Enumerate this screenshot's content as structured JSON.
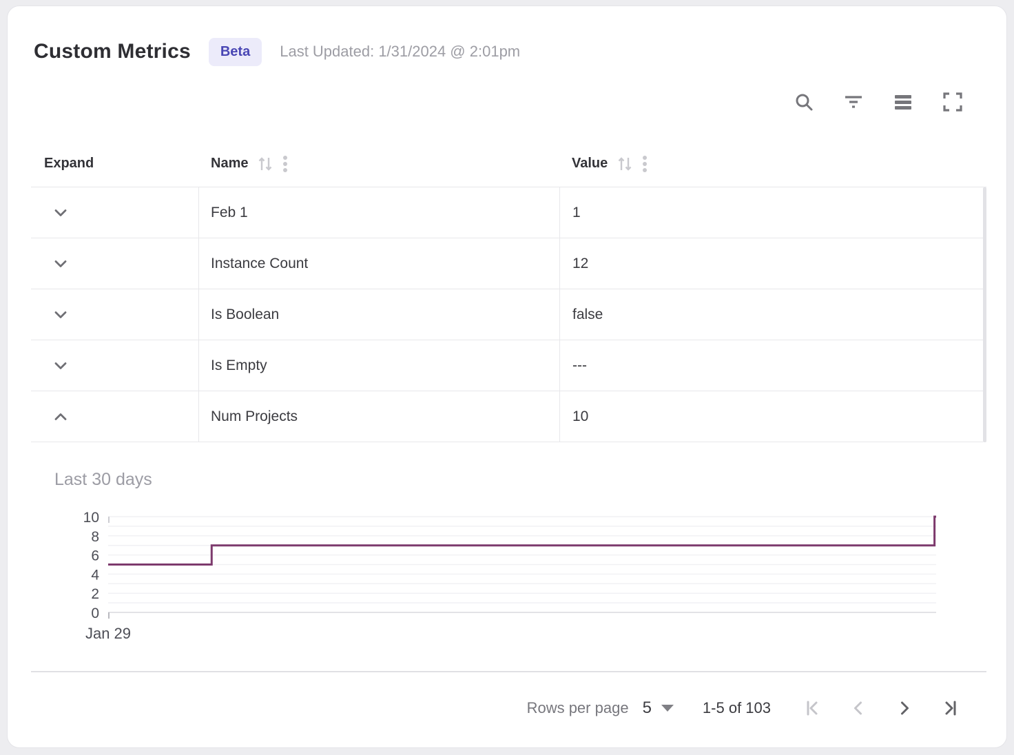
{
  "page": {
    "title": "Custom Metrics",
    "badge": "Beta",
    "last_updated": "Last Updated: 1/31/2024 @ 2:01pm"
  },
  "toolbar": {
    "icons": [
      "search-icon",
      "filter-icon",
      "density-icon",
      "fullscreen-icon"
    ]
  },
  "table": {
    "columns": [
      {
        "label": "Expand",
        "sortable": false
      },
      {
        "label": "Name",
        "sortable": true
      },
      {
        "label": "Value",
        "sortable": true
      }
    ],
    "rows": [
      {
        "name": "Feb 1",
        "value": "1",
        "expanded": false
      },
      {
        "name": "Instance Count",
        "value": "12",
        "expanded": false
      },
      {
        "name": "Is Boolean",
        "value": "false",
        "expanded": false
      },
      {
        "name": "Is Empty",
        "value": "---",
        "expanded": false
      },
      {
        "name": "Num Projects",
        "value": "10",
        "expanded": true
      }
    ]
  },
  "chart_data": {
    "type": "line",
    "subtype": "step",
    "title": "Last 30 days",
    "series_name": "Num Projects",
    "points": [
      {
        "x": 0,
        "y": 5
      },
      {
        "x": 0.125,
        "y": 5
      },
      {
        "x": 0.125,
        "y": 7
      },
      {
        "x": 0.998,
        "y": 7
      },
      {
        "x": 0.998,
        "y": 10
      },
      {
        "x": 1,
        "y": 10
      }
    ],
    "ylim": [
      0,
      10
    ],
    "y_tick_labels": [
      0,
      2,
      4,
      6,
      8,
      10
    ],
    "grid_every": 1,
    "x_axis": {
      "tick_labels": [
        "Jan 29"
      ],
      "tick_positions": [
        0
      ]
    },
    "grid": true,
    "legend": "none",
    "line_color": "#7d3a6d"
  },
  "pagination": {
    "rows_per_page_label": "Rows per page",
    "rows_per_page_value": "5",
    "range_label": "1-5 of 103",
    "first_page_enabled": false,
    "prev_enabled": false,
    "next_enabled": true,
    "last_enabled": true
  },
  "colors": {
    "accent_line": "#7d3a6d",
    "badge_bg": "#ecebfa",
    "badge_text": "#4946b4",
    "grid_line": "#f1f1f4",
    "axis_line": "#e2e2e6",
    "tick_label": "#4d4e56",
    "row_border": "#e7e7ea"
  }
}
